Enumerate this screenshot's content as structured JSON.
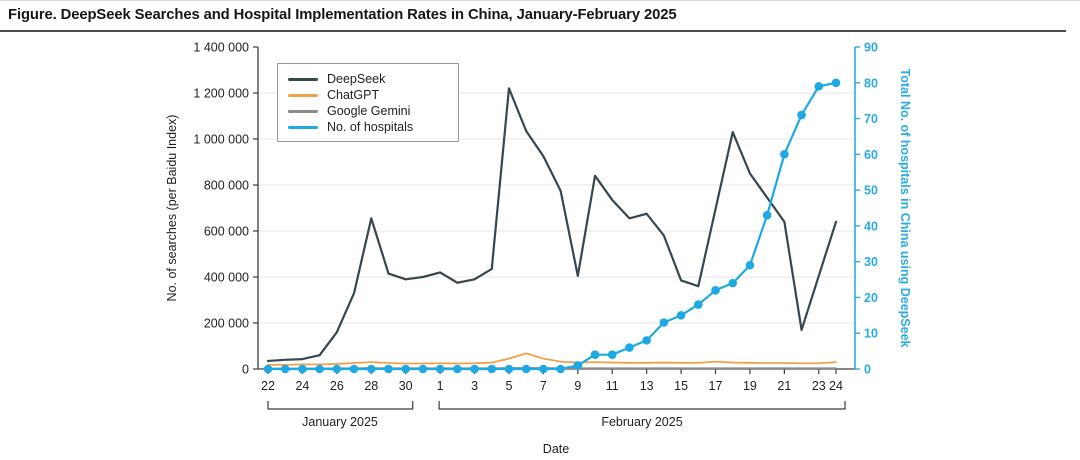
{
  "figure": {
    "title": "Figure. DeepSeek Searches and Hospital Implementation Rates in China, January-February 2025"
  },
  "chart_data": {
    "type": "line",
    "title": "DeepSeek Searches and Hospital Implementation Rates in China, January-February 2025",
    "grid": "horizontal",
    "legend_position": "top-left",
    "x_axis": {
      "label": "Date",
      "days": [
        "Jan 22",
        "Jan 23",
        "Jan 24",
        "Jan 25",
        "Jan 26",
        "Jan 27",
        "Jan 28",
        "Jan 29",
        "Jan 30",
        "Jan 31",
        "Feb 1",
        "Feb 2",
        "Feb 3",
        "Feb 4",
        "Feb 5",
        "Feb 6",
        "Feb 7",
        "Feb 8",
        "Feb 9",
        "Feb 10",
        "Feb 11",
        "Feb 12",
        "Feb 13",
        "Feb 14",
        "Feb 15",
        "Feb 16",
        "Feb 17",
        "Feb 18",
        "Feb 19",
        "Feb 20",
        "Feb 21",
        "Feb 22",
        "Feb 23",
        "Feb 24"
      ],
      "month_groups": [
        {
          "label": "January 2025",
          "tick_labels": [
            "22",
            "24",
            "26",
            "28",
            "30"
          ],
          "tick_days": [
            0,
            2,
            4,
            6,
            8
          ]
        },
        {
          "label": "February 2025",
          "tick_labels": [
            "1",
            "3",
            "5",
            "7",
            "9",
            "11",
            "13",
            "15",
            "17",
            "19",
            "21",
            "23",
            "24"
          ],
          "tick_days": [
            10,
            12,
            14,
            16,
            18,
            20,
            22,
            24,
            26,
            28,
            30,
            32,
            33
          ]
        }
      ]
    },
    "y_left": {
      "label": "No. of searches (per Baidu Index)",
      "range": [
        0,
        1400000
      ],
      "tick_values": [
        0,
        200000,
        400000,
        600000,
        800000,
        1000000,
        1200000,
        1400000
      ],
      "tick_labels": [
        "0",
        "200 000",
        "400 000",
        "600 000",
        "800 000",
        "1 000 000",
        "1 200 000",
        "1 400 000"
      ]
    },
    "y_right": {
      "label": "Total No. of hospitals in China using DeepSeek",
      "range": [
        0,
        90
      ],
      "tick_values": [
        0,
        10,
        20,
        30,
        40,
        50,
        60,
        70,
        80,
        90
      ],
      "color": "#2aabe2"
    },
    "series": [
      {
        "name": "DeepSeek",
        "axis": "left",
        "color": "#37474f",
        "width": 2.2,
        "markers": false,
        "values": [
          35000,
          40000,
          43000,
          60000,
          160000,
          330000,
          655000,
          415000,
          390000,
          400000,
          420000,
          375000,
          390000,
          435000,
          1220000,
          1035000,
          925000,
          775000,
          405000,
          840000,
          735000,
          655000,
          675000,
          580000,
          385000,
          360000,
          695000,
          1030000,
          850000,
          745000,
          640000,
          170000,
          405000,
          640000
        ]
      },
      {
        "name": "ChatGPT",
        "axis": "left",
        "color": "#f0a24b",
        "width": 1.8,
        "markers": false,
        "values": [
          18000,
          18000,
          20000,
          20000,
          22000,
          26000,
          30000,
          26000,
          24000,
          24000,
          25000,
          24000,
          25000,
          28000,
          45000,
          68000,
          45000,
          32000,
          28000,
          30000,
          28000,
          27000,
          27000,
          28000,
          27000,
          27000,
          32000,
          28000,
          27000,
          26000,
          26000,
          25000,
          25000,
          30000
        ]
      },
      {
        "name": "Google Gemini",
        "axis": "left",
        "color": "#8a8a8a",
        "width": 1.8,
        "markers": false,
        "values": [
          2000,
          2000,
          2000,
          2000,
          3000,
          3000,
          4000,
          3000,
          3000,
          3000,
          3000,
          3000,
          3000,
          3000,
          4000,
          4000,
          4000,
          3000,
          3000,
          3000,
          3000,
          3000,
          3000,
          3000,
          3000,
          3000,
          3000,
          3000,
          3000,
          3000,
          3000,
          3000,
          3000,
          3000
        ]
      },
      {
        "name": "No. of hospitals",
        "axis": "right",
        "color": "#1ea9e2",
        "width": 2.2,
        "markers": true,
        "values": [
          0,
          0,
          0,
          0,
          0,
          0,
          0,
          0,
          0,
          0,
          0,
          0,
          0,
          0,
          0,
          0,
          0,
          0,
          1,
          4,
          4,
          6,
          8,
          13,
          15,
          18,
          22,
          24,
          29,
          43,
          60,
          71,
          79,
          80
        ]
      }
    ]
  }
}
